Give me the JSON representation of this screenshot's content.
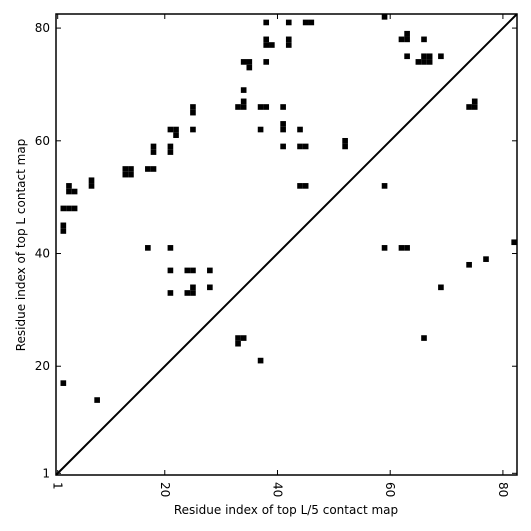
{
  "chart_data": {
    "type": "scatter",
    "title": "",
    "xlabel": "Residue index of top L/5 contact map",
    "ylabel": "Residue index of top L contact map",
    "xlim": [
      0.7,
      82.5
    ],
    "ylim": [
      0.7,
      82.5
    ],
    "x_ticks": [
      1,
      20,
      40,
      60,
      80
    ],
    "y_ticks": [
      1,
      20,
      40,
      60,
      80
    ],
    "grid": false,
    "marker": "square",
    "marker_color": "#000000",
    "diagonal": true,
    "series": [
      {
        "name": "",
        "points": [
          [
            38,
            81
          ],
          [
            42,
            81
          ],
          [
            45,
            81
          ],
          [
            46,
            81
          ],
          [
            34,
            74
          ],
          [
            35,
            74
          ],
          [
            35,
            73
          ],
          [
            38,
            74
          ],
          [
            38,
            78
          ],
          [
            38,
            77
          ],
          [
            39,
            77
          ],
          [
            42,
            78
          ],
          [
            42,
            77
          ],
          [
            34,
            69
          ],
          [
            34,
            67
          ],
          [
            33,
            66
          ],
          [
            34,
            66
          ],
          [
            37,
            66
          ],
          [
            38,
            66
          ],
          [
            41,
            66
          ],
          [
            25,
            66
          ],
          [
            25,
            65
          ],
          [
            21,
            62
          ],
          [
            22,
            62
          ],
          [
            22,
            61
          ],
          [
            25,
            62
          ],
          [
            37,
            62
          ],
          [
            41,
            63
          ],
          [
            41,
            62
          ],
          [
            44,
            62
          ],
          [
            18,
            59
          ],
          [
            18,
            58
          ],
          [
            21,
            59
          ],
          [
            21,
            58
          ],
          [
            41,
            59
          ],
          [
            44,
            59
          ],
          [
            45,
            59
          ],
          [
            52,
            60
          ],
          [
            52,
            59
          ],
          [
            44,
            52
          ],
          [
            45,
            52
          ],
          [
            13,
            55
          ],
          [
            14,
            55
          ],
          [
            13,
            54
          ],
          [
            14,
            54
          ],
          [
            17,
            55
          ],
          [
            18,
            55
          ],
          [
            7,
            53
          ],
          [
            7,
            52
          ],
          [
            3,
            52
          ],
          [
            3,
            51
          ],
          [
            4,
            51
          ],
          [
            2,
            48
          ],
          [
            3,
            48
          ],
          [
            4,
            48
          ],
          [
            2,
            45
          ],
          [
            2,
            44
          ],
          [
            17,
            41
          ],
          [
            21,
            41
          ],
          [
            21,
            37
          ],
          [
            24,
            37
          ],
          [
            25,
            37
          ],
          [
            28,
            37
          ],
          [
            21,
            33
          ],
          [
            24,
            33
          ],
          [
            25,
            33
          ],
          [
            25,
            34
          ],
          [
            28,
            34
          ],
          [
            33,
            25
          ],
          [
            34,
            25
          ],
          [
            33,
            24
          ],
          [
            37,
            21
          ],
          [
            2,
            17
          ],
          [
            8,
            14
          ],
          [
            59,
            82
          ],
          [
            62,
            78
          ],
          [
            63,
            78
          ],
          [
            63,
            79
          ],
          [
            66,
            78
          ],
          [
            63,
            75
          ],
          [
            65,
            74
          ],
          [
            66,
            75
          ],
          [
            67,
            75
          ],
          [
            66,
            74
          ],
          [
            67,
            74
          ],
          [
            69,
            75
          ],
          [
            74,
            66
          ],
          [
            75,
            66
          ],
          [
            75,
            67
          ],
          [
            59,
            52
          ],
          [
            59,
            41
          ],
          [
            62,
            41
          ],
          [
            63,
            41
          ],
          [
            82,
            42
          ],
          [
            74,
            38
          ],
          [
            77,
            39
          ],
          [
            69,
            34
          ],
          [
            66,
            25
          ]
        ]
      }
    ]
  }
}
